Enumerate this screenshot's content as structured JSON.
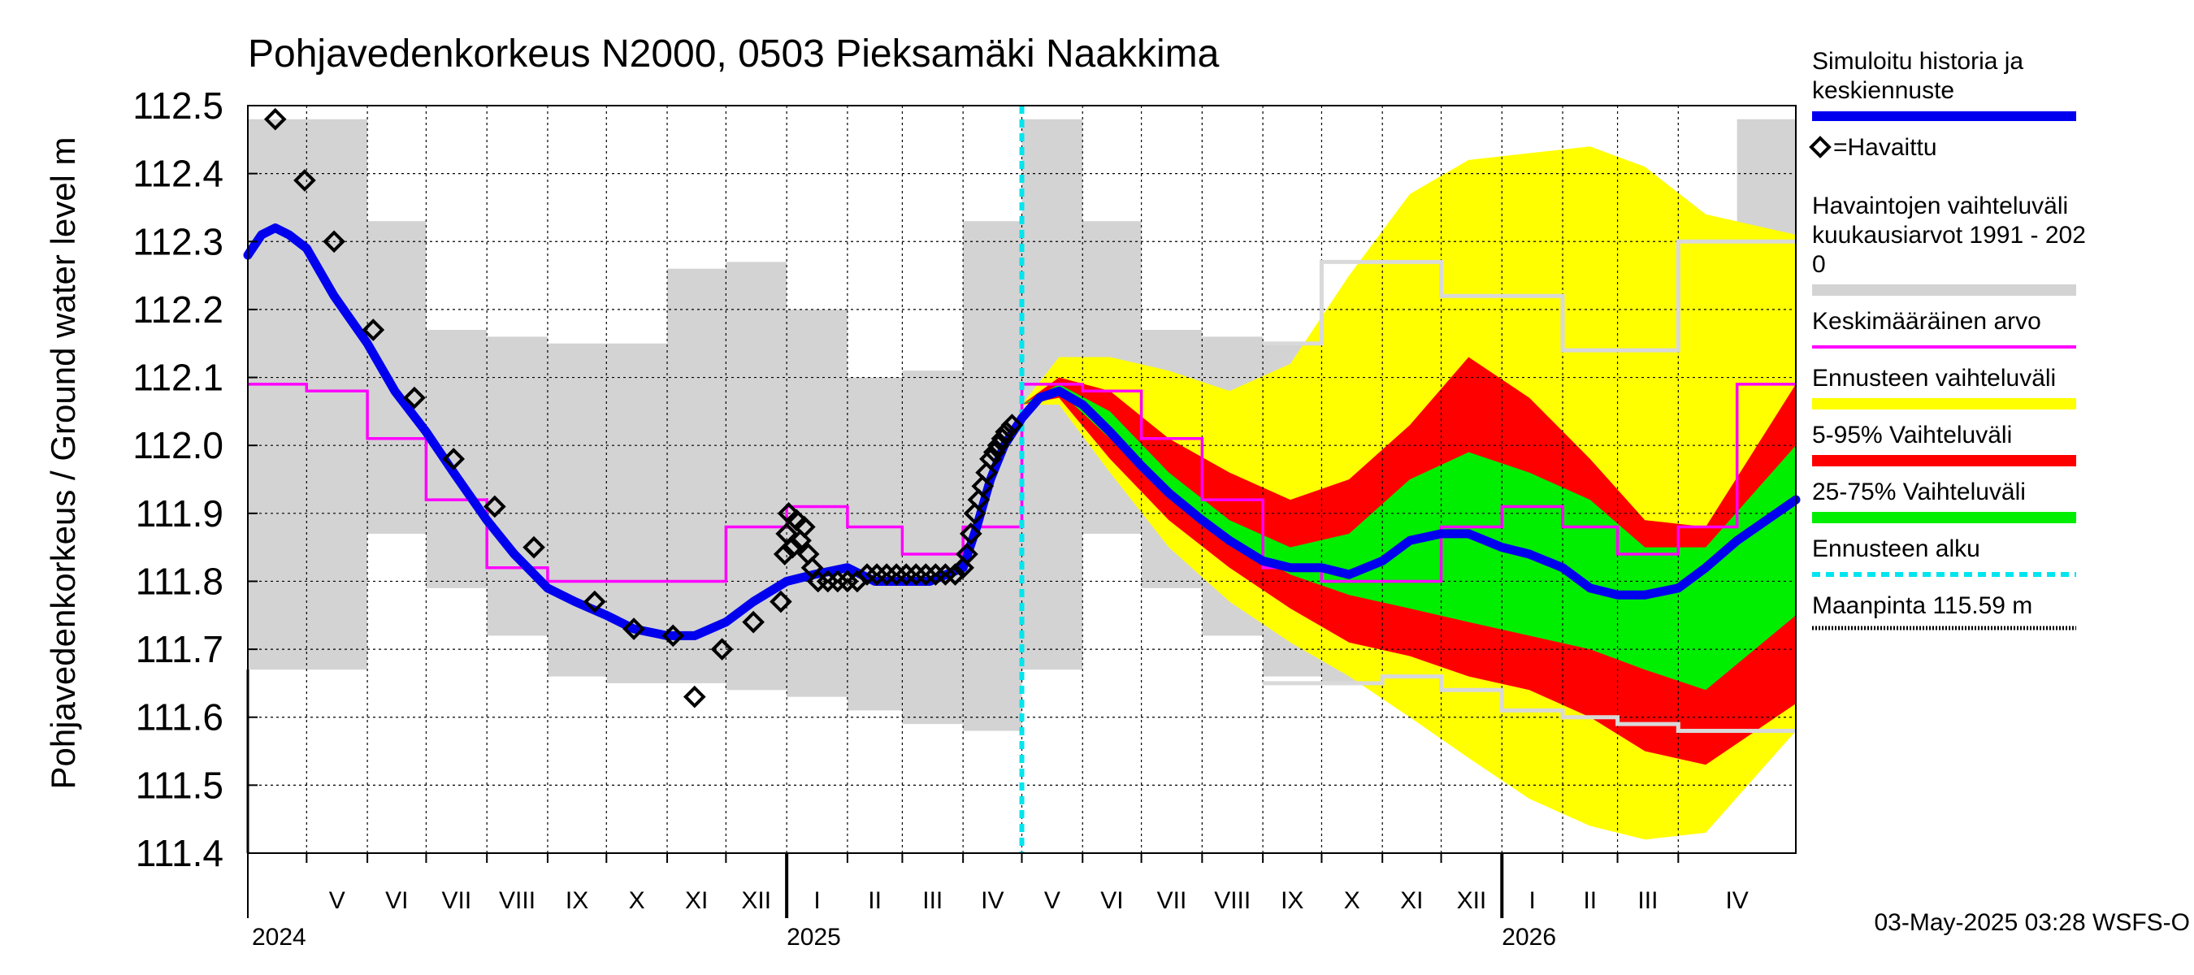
{
  "chart_data": {
    "type": "area",
    "title": "Pohjavedenkorkeus N2000, 0503 Pieksamäki Naakkima",
    "ylabel": "Pohjavedenkorkeus / Ground water level   m",
    "ylim": [
      111.4,
      112.5
    ],
    "y_ticks": [
      "111.4",
      "111.5",
      "111.6",
      "111.7",
      "111.8",
      "111.9",
      "112.0",
      "112.1",
      "112.2",
      "112.3",
      "112.4",
      "112.5"
    ],
    "x_range": [
      "2024-04-01",
      "2026-05-31"
    ],
    "grid": true,
    "months": [
      {
        "label": "V",
        "start": "2024-05-01"
      },
      {
        "label": "VI",
        "start": "2024-06-01"
      },
      {
        "label": "VII",
        "start": "2024-07-01"
      },
      {
        "label": "VIII",
        "start": "2024-08-01"
      },
      {
        "label": "IX",
        "start": "2024-09-01"
      },
      {
        "label": "X",
        "start": "2024-10-01"
      },
      {
        "label": "XI",
        "start": "2024-11-01"
      },
      {
        "label": "XII",
        "start": "2024-12-01"
      },
      {
        "label": "I",
        "start": "2025-01-01"
      },
      {
        "label": "II",
        "start": "2025-02-01"
      },
      {
        "label": "III",
        "start": "2025-03-01"
      },
      {
        "label": "IV",
        "start": "2025-04-01"
      },
      {
        "label": "V",
        "start": "2025-05-01"
      },
      {
        "label": "VI",
        "start": "2025-06-01"
      },
      {
        "label": "VII",
        "start": "2025-07-01"
      },
      {
        "label": "VIII",
        "start": "2025-08-01"
      },
      {
        "label": "IX",
        "start": "2025-09-01"
      },
      {
        "label": "X",
        "start": "2025-10-01"
      },
      {
        "label": "XI",
        "start": "2025-11-01"
      },
      {
        "label": "XII",
        "start": "2025-12-01"
      },
      {
        "label": "I",
        "start": "2026-01-01"
      },
      {
        "label": "II",
        "start": "2026-02-01"
      },
      {
        "label": "III",
        "start": "2026-03-01"
      },
      {
        "label": "IV",
        "start": "2026-04-01"
      }
    ],
    "years": [
      {
        "label": "2024",
        "date": "2024-05-01"
      },
      {
        "label": "2025",
        "date": "2025-01-01"
      },
      {
        "label": "2026",
        "date": "2026-01-01"
      }
    ],
    "forecast_start": "2025-05-01",
    "monthly_range_history": [
      {
        "start": "2024-04-01",
        "min": 111.67,
        "max": 112.48
      },
      {
        "start": "2024-05-01",
        "min": 111.67,
        "max": 112.48
      },
      {
        "start": "2024-06-01",
        "min": 111.87,
        "max": 112.33
      },
      {
        "start": "2024-07-01",
        "min": 111.79,
        "max": 112.17
      },
      {
        "start": "2024-08-01",
        "min": 111.72,
        "max": 112.16
      },
      {
        "start": "2024-09-01",
        "min": 111.66,
        "max": 112.15
      },
      {
        "start": "2024-10-01",
        "min": 111.65,
        "max": 112.15
      },
      {
        "start": "2024-11-01",
        "min": 111.65,
        "max": 112.26
      },
      {
        "start": "2024-12-01",
        "min": 111.64,
        "max": 112.27
      },
      {
        "start": "2025-01-01",
        "min": 111.63,
        "max": 112.2
      },
      {
        "start": "2025-02-01",
        "min": 111.61,
        "max": 112.1
      },
      {
        "start": "2025-03-01",
        "min": 111.59,
        "max": 112.11
      },
      {
        "start": "2025-04-01",
        "min": 111.58,
        "max": 112.33
      },
      {
        "start": "2025-05-01",
        "min": 111.67,
        "max": 112.48
      },
      {
        "start": "2025-06-01",
        "min": 111.87,
        "max": 112.33
      },
      {
        "start": "2025-07-01",
        "min": 111.79,
        "max": 112.17
      },
      {
        "start": "2025-08-01",
        "min": 111.72,
        "max": 112.16
      },
      {
        "start": "2025-09-01",
        "min": 111.66,
        "max": 112.15
      },
      {
        "start": "2025-10-01",
        "min": 111.65,
        "max": 112.15
      },
      {
        "start": "2025-11-01",
        "min": 111.65,
        "max": 112.26
      },
      {
        "start": "2025-12-01",
        "min": 111.64,
        "max": 112.27
      },
      {
        "start": "2026-01-01",
        "min": 111.63,
        "max": 112.2
      },
      {
        "start": "2026-02-01",
        "min": 111.61,
        "max": 112.1
      },
      {
        "start": "2026-03-01",
        "min": 111.59,
        "max": 112.11
      },
      {
        "start": "2026-04-01",
        "min": 111.58,
        "max": 112.33
      },
      {
        "start": "2026-05-01",
        "min": 111.67,
        "max": 112.48
      }
    ],
    "monthly_mean": [
      {
        "start": "2024-04-01",
        "value": 112.09
      },
      {
        "start": "2024-05-01",
        "value": 112.08
      },
      {
        "start": "2024-06-01",
        "value": 112.01
      },
      {
        "start": "2024-07-01",
        "value": 111.92
      },
      {
        "start": "2024-08-01",
        "value": 111.82
      },
      {
        "start": "2024-09-01",
        "value": 111.8
      },
      {
        "start": "2024-10-01",
        "value": 111.8
      },
      {
        "start": "2024-11-01",
        "value": 111.8
      },
      {
        "start": "2024-12-01",
        "value": 111.88
      },
      {
        "start": "2025-01-01",
        "value": 111.91
      },
      {
        "start": "2025-02-01",
        "value": 111.88
      },
      {
        "start": "2025-03-01",
        "value": 111.84
      },
      {
        "start": "2025-04-01",
        "value": 111.88
      },
      {
        "start": "2025-05-01",
        "value": 112.09
      },
      {
        "start": "2025-06-01",
        "value": 112.08
      },
      {
        "start": "2025-07-01",
        "value": 112.01
      },
      {
        "start": "2025-08-01",
        "value": 111.92
      },
      {
        "start": "2025-09-01",
        "value": 111.82
      },
      {
        "start": "2025-10-01",
        "value": 111.8
      },
      {
        "start": "2025-11-01",
        "value": 111.8
      },
      {
        "start": "2025-12-01",
        "value": 111.88
      },
      {
        "start": "2026-01-01",
        "value": 111.91
      },
      {
        "start": "2026-02-01",
        "value": 111.88
      },
      {
        "start": "2026-03-01",
        "value": 111.84
      },
      {
        "start": "2026-04-01",
        "value": 111.88
      },
      {
        "start": "2026-05-01",
        "value": 112.09
      }
    ],
    "forecast_monthly_max": [
      {
        "start": "2025-09-01",
        "value": 112.15
      },
      {
        "start": "2025-10-01",
        "value": 112.27
      },
      {
        "start": "2025-11-01",
        "value": 112.27
      },
      {
        "start": "2025-12-01",
        "value": 112.22
      },
      {
        "start": "2026-01-01",
        "value": 112.22
      },
      {
        "start": "2026-02-01",
        "value": 112.14
      },
      {
        "start": "2026-03-01",
        "value": 112.14
      },
      {
        "start": "2026-04-01",
        "value": 112.3
      },
      {
        "start": "2026-05-01",
        "value": 112.3
      }
    ],
    "forecast_monthly_min": [
      {
        "start": "2025-09-01",
        "value": 111.65
      },
      {
        "start": "2025-10-01",
        "value": 111.65
      },
      {
        "start": "2025-11-01",
        "value": 111.66
      },
      {
        "start": "2025-12-01",
        "value": 111.64
      },
      {
        "start": "2026-01-01",
        "value": 111.61
      },
      {
        "start": "2026-02-01",
        "value": 111.6
      },
      {
        "start": "2026-03-01",
        "value": 111.59
      },
      {
        "start": "2026-04-01",
        "value": 111.58
      },
      {
        "start": "2026-05-01",
        "value": 111.58
      }
    ],
    "simulated": [
      {
        "x": "2024-04-01",
        "y": 112.28
      },
      {
        "x": "2024-04-08",
        "y": 112.31
      },
      {
        "x": "2024-04-15",
        "y": 112.32
      },
      {
        "x": "2024-04-22",
        "y": 112.31
      },
      {
        "x": "2024-05-01",
        "y": 112.29
      },
      {
        "x": "2024-05-15",
        "y": 112.22
      },
      {
        "x": "2024-06-01",
        "y": 112.15
      },
      {
        "x": "2024-06-15",
        "y": 112.08
      },
      {
        "x": "2024-07-01",
        "y": 112.02
      },
      {
        "x": "2024-07-15",
        "y": 111.96
      },
      {
        "x": "2024-08-01",
        "y": 111.89
      },
      {
        "x": "2024-08-15",
        "y": 111.84
      },
      {
        "x": "2024-09-01",
        "y": 111.79
      },
      {
        "x": "2024-09-15",
        "y": 111.77
      },
      {
        "x": "2024-10-01",
        "y": 111.75
      },
      {
        "x": "2024-10-15",
        "y": 111.73
      },
      {
        "x": "2024-11-01",
        "y": 111.72
      },
      {
        "x": "2024-11-15",
        "y": 111.72
      },
      {
        "x": "2024-12-01",
        "y": 111.74
      },
      {
        "x": "2024-12-15",
        "y": 111.77
      },
      {
        "x": "2025-01-01",
        "y": 111.8
      },
      {
        "x": "2025-01-15",
        "y": 111.81
      },
      {
        "x": "2025-02-01",
        "y": 111.82
      },
      {
        "x": "2025-02-15",
        "y": 111.8
      },
      {
        "x": "2025-03-01",
        "y": 111.8
      },
      {
        "x": "2025-03-15",
        "y": 111.8
      },
      {
        "x": "2025-04-01",
        "y": 111.82
      },
      {
        "x": "2025-04-08",
        "y": 111.88
      },
      {
        "x": "2025-04-15",
        "y": 111.95
      },
      {
        "x": "2025-04-22",
        "y": 112.0
      },
      {
        "x": "2025-05-01",
        "y": 112.04
      },
      {
        "x": "2025-05-10",
        "y": 112.07
      },
      {
        "x": "2025-05-20",
        "y": 112.08
      },
      {
        "x": "2025-06-01",
        "y": 112.06
      },
      {
        "x": "2025-06-15",
        "y": 112.02
      },
      {
        "x": "2025-07-01",
        "y": 111.97
      },
      {
        "x": "2025-07-15",
        "y": 111.93
      },
      {
        "x": "2025-08-01",
        "y": 111.89
      },
      {
        "x": "2025-08-15",
        "y": 111.86
      },
      {
        "x": "2025-09-01",
        "y": 111.83
      },
      {
        "x": "2025-09-15",
        "y": 111.82
      },
      {
        "x": "2025-10-01",
        "y": 111.82
      },
      {
        "x": "2025-10-15",
        "y": 111.81
      },
      {
        "x": "2025-11-01",
        "y": 111.83
      },
      {
        "x": "2025-11-15",
        "y": 111.86
      },
      {
        "x": "2025-12-01",
        "y": 111.87
      },
      {
        "x": "2025-12-15",
        "y": 111.87
      },
      {
        "x": "2026-01-01",
        "y": 111.85
      },
      {
        "x": "2026-01-15",
        "y": 111.84
      },
      {
        "x": "2026-02-01",
        "y": 111.82
      },
      {
        "x": "2026-02-15",
        "y": 111.79
      },
      {
        "x": "2026-03-01",
        "y": 111.78
      },
      {
        "x": "2026-03-15",
        "y": 111.78
      },
      {
        "x": "2026-04-01",
        "y": 111.79
      },
      {
        "x": "2026-04-15",
        "y": 111.82
      },
      {
        "x": "2026-05-01",
        "y": 111.86
      },
      {
        "x": "2026-05-31",
        "y": 111.92
      }
    ],
    "forecast_envelopes": {
      "x": [
        "2025-05-01",
        "2025-05-20",
        "2025-06-15",
        "2025-07-15",
        "2025-08-15",
        "2025-09-15",
        "2025-10-15",
        "2025-11-15",
        "2025-12-15",
        "2026-01-15",
        "2026-02-15",
        "2026-03-15",
        "2026-04-15",
        "2026-05-31"
      ],
      "total_max": [
        112.06,
        112.13,
        112.13,
        112.11,
        112.08,
        112.12,
        112.25,
        112.37,
        112.42,
        112.43,
        112.44,
        112.41,
        112.34,
        112.31
      ],
      "total_min": [
        112.06,
        112.06,
        111.96,
        111.85,
        111.77,
        111.71,
        111.66,
        111.6,
        111.54,
        111.48,
        111.44,
        111.42,
        111.43,
        111.58
      ],
      "p95": [
        112.06,
        112.1,
        112.08,
        112.01,
        111.96,
        111.92,
        111.95,
        112.03,
        112.13,
        112.07,
        111.98,
        111.89,
        111.88,
        112.09
      ],
      "p5": [
        112.06,
        112.07,
        111.98,
        111.89,
        111.82,
        111.76,
        111.71,
        111.69,
        111.66,
        111.64,
        111.6,
        111.55,
        111.53,
        111.62
      ],
      "p75": [
        112.06,
        112.09,
        112.05,
        111.96,
        111.89,
        111.85,
        111.87,
        111.95,
        111.99,
        111.96,
        111.92,
        111.85,
        111.85,
        112.0
      ],
      "p25": [
        112.06,
        112.08,
        112.01,
        111.93,
        111.86,
        111.81,
        111.78,
        111.76,
        111.74,
        111.72,
        111.7,
        111.67,
        111.64,
        111.75
      ]
    },
    "observed": [
      {
        "x": "2024-04-15",
        "y": 112.48
      },
      {
        "x": "2024-04-30",
        "y": 112.39
      },
      {
        "x": "2024-05-15",
        "y": 112.3
      },
      {
        "x": "2024-06-04",
        "y": 112.17
      },
      {
        "x": "2024-06-25",
        "y": 112.07
      },
      {
        "x": "2024-07-15",
        "y": 111.98
      },
      {
        "x": "2024-08-05",
        "y": 111.91
      },
      {
        "x": "2024-08-25",
        "y": 111.85
      },
      {
        "x": "2024-09-25",
        "y": 111.77
      },
      {
        "x": "2024-10-15",
        "y": 111.73
      },
      {
        "x": "2024-11-04",
        "y": 111.72
      },
      {
        "x": "2024-11-15",
        "y": 111.63
      },
      {
        "x": "2024-11-29",
        "y": 111.7
      },
      {
        "x": "2024-12-15",
        "y": 111.74
      },
      {
        "x": "2024-12-29",
        "y": 111.77
      },
      {
        "x": "2024-12-31",
        "y": 111.84
      },
      {
        "x": "2025-01-01",
        "y": 111.87
      },
      {
        "x": "2025-01-02",
        "y": 111.9
      },
      {
        "x": "2025-01-04",
        "y": 111.85
      },
      {
        "x": "2025-01-06",
        "y": 111.89
      },
      {
        "x": "2025-01-08",
        "y": 111.86
      },
      {
        "x": "2025-01-10",
        "y": 111.88
      },
      {
        "x": "2025-01-12",
        "y": 111.84
      },
      {
        "x": "2025-01-14",
        "y": 111.82
      },
      {
        "x": "2025-01-17",
        "y": 111.8
      },
      {
        "x": "2025-01-22",
        "y": 111.8
      },
      {
        "x": "2025-01-27",
        "y": 111.8
      },
      {
        "x": "2025-02-01",
        "y": 111.8
      },
      {
        "x": "2025-02-06",
        "y": 111.8
      },
      {
        "x": "2025-02-11",
        "y": 111.81
      },
      {
        "x": "2025-02-16",
        "y": 111.81
      },
      {
        "x": "2025-02-21",
        "y": 111.81
      },
      {
        "x": "2025-02-26",
        "y": 111.81
      },
      {
        "x": "2025-03-03",
        "y": 111.81
      },
      {
        "x": "2025-03-08",
        "y": 111.81
      },
      {
        "x": "2025-03-13",
        "y": 111.81
      },
      {
        "x": "2025-03-18",
        "y": 111.81
      },
      {
        "x": "2025-03-23",
        "y": 111.81
      },
      {
        "x": "2025-03-28",
        "y": 111.81
      },
      {
        "x": "2025-04-01",
        "y": 111.82
      },
      {
        "x": "2025-04-03",
        "y": 111.84
      },
      {
        "x": "2025-04-05",
        "y": 111.87
      },
      {
        "x": "2025-04-07",
        "y": 111.9
      },
      {
        "x": "2025-04-09",
        "y": 111.92
      },
      {
        "x": "2025-04-11",
        "y": 111.94
      },
      {
        "x": "2025-04-13",
        "y": 111.96
      },
      {
        "x": "2025-04-15",
        "y": 111.98
      },
      {
        "x": "2025-04-17",
        "y": 111.99
      },
      {
        "x": "2025-04-19",
        "y": 112.0
      },
      {
        "x": "2025-04-21",
        "y": 112.01
      },
      {
        "x": "2025-04-23",
        "y": 112.02
      },
      {
        "x": "2025-04-26",
        "y": 112.03
      }
    ],
    "legend": [
      {
        "label": "Simuloitu historia ja\nkeskiennuste",
        "kind": "line",
        "color": "#0000ee"
      },
      {
        "label": "=Havaittu",
        "kind": "marker",
        "color": "#000000"
      },
      {
        "label": "Havaintojen vaihteluväli\n kuukausiarvot 1991 - 202\n0",
        "kind": "band",
        "color": "#d3d3d3"
      },
      {
        "label": "Keskimääräinen arvo",
        "kind": "line",
        "color": "#ff00ff"
      },
      {
        "label": "Ennusteen vaihteluväli",
        "kind": "band",
        "color": "#ffff00"
      },
      {
        "label": "5-95% Vaihteluväli",
        "kind": "band",
        "color": "#ff0000"
      },
      {
        "label": "25-75% Vaihteluväli",
        "kind": "band",
        "color": "#00ee00"
      },
      {
        "label": "Ennusteen alku",
        "kind": "dashed",
        "color": "#00e5ee"
      },
      {
        "label": "Maanpinta 115.59 m",
        "kind": "dotted",
        "color": "#000000"
      }
    ],
    "colors": {
      "history_range": "#d3d3d3",
      "total_forecast": "#ffff00",
      "p5_95": "#ff0000",
      "p25_75": "#00ee00",
      "simulated": "#0000ee",
      "mean": "#ff00ff",
      "forecast_start": "#00e5ee",
      "forecast_range_lines": "#d9d9d9"
    }
  },
  "footer": "03-May-2025 03:28 WSFS-O"
}
